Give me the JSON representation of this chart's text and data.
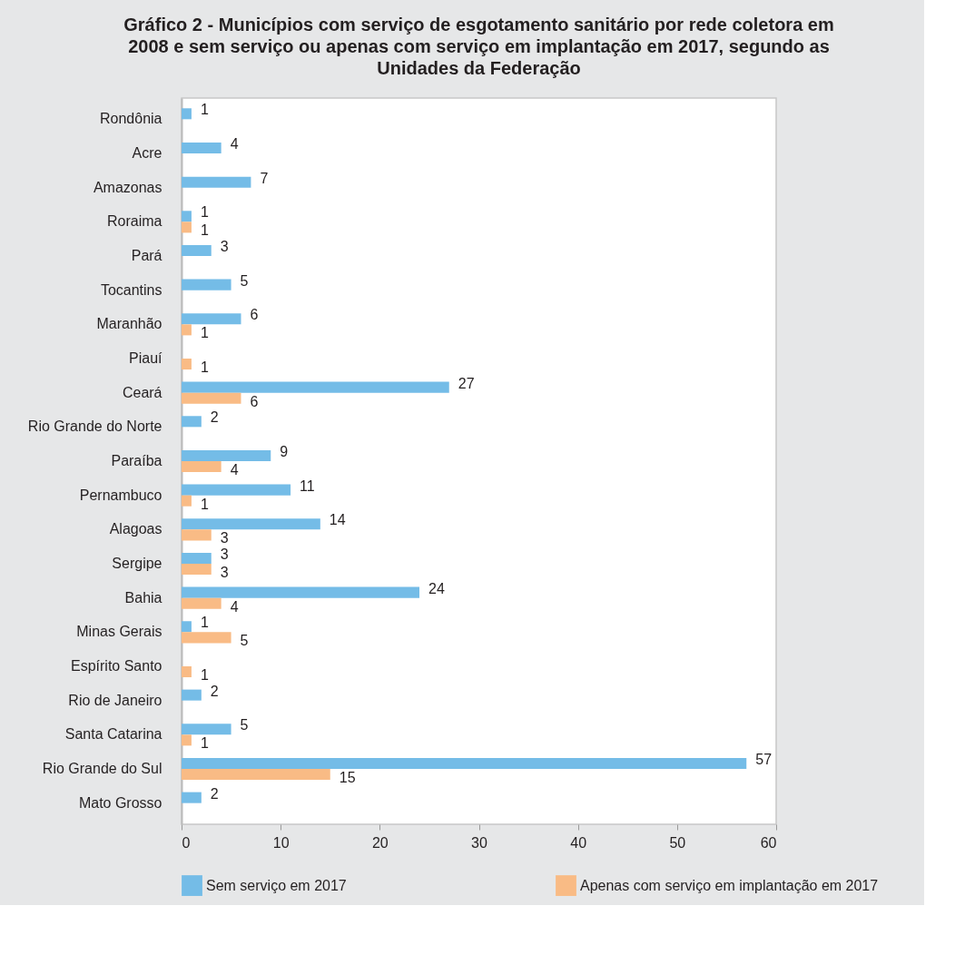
{
  "chart_data": {
    "type": "bar",
    "orientation": "horizontal",
    "title": "Gráfico 2 - Municípios com serviço de esgotamento sanitário por rede coletora em 2008 e sem serviço ou apenas com serviço em implantação em 2017, segundo as Unidades da Federação",
    "categories": [
      "Rondônia",
      "Acre",
      "Amazonas",
      "Roraima",
      "Pará",
      "Tocantins",
      "Maranhão",
      "Piauí",
      "Ceará",
      "Rio Grande do Norte",
      "Paraíba",
      "Pernambuco",
      "Alagoas",
      "Sergipe",
      "Bahia",
      "Minas Gerais",
      "Espírito Santo",
      "Rio de Janeiro",
      "Santa Catarina",
      "Rio Grande do Sul",
      "Mato Grosso"
    ],
    "series": [
      {
        "name": "Sem serviço em 2017",
        "color": "#74bce7",
        "values": [
          1,
          4,
          7,
          1,
          3,
          5,
          6,
          null,
          27,
          2,
          9,
          11,
          14,
          3,
          24,
          1,
          null,
          2,
          5,
          57,
          2
        ]
      },
      {
        "name": "Apenas com serviço em implantação em 2017",
        "color": "#f9bb85",
        "values": [
          null,
          null,
          null,
          1,
          null,
          null,
          1,
          1,
          6,
          null,
          4,
          1,
          3,
          3,
          4,
          5,
          1,
          null,
          1,
          15,
          null
        ]
      }
    ],
    "xlim": [
      0,
      60
    ],
    "xticks": [
      0,
      10,
      20,
      30,
      40,
      50,
      60
    ],
    "data_labels": true,
    "legend": "bottom",
    "grid": false
  }
}
